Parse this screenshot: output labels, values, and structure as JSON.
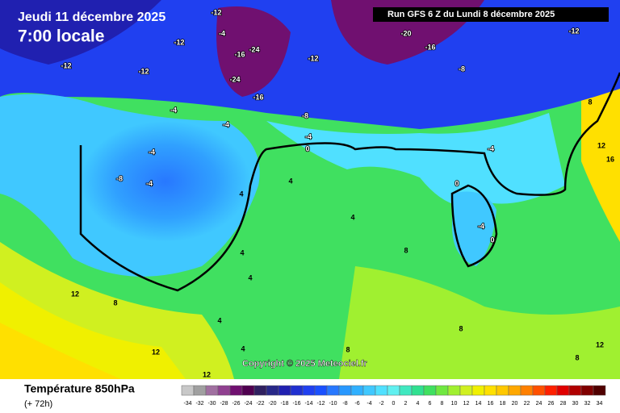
{
  "header": {
    "date": "Jeudi 11 décembre 2025",
    "time": "7:00 locale",
    "run": "Run GFS 6 Z du Lundi 8 décembre 2025"
  },
  "copyright": "Copyright © 2025 Meteociel.fr",
  "contour_labels": [
    -12,
    -4,
    -12,
    -16,
    -24,
    -24,
    -16,
    -12,
    -20,
    -16,
    -8,
    -12,
    -12,
    -12,
    -4,
    -4,
    -8,
    -4,
    0,
    -4,
    -8,
    -4,
    4,
    4,
    4,
    0,
    -4,
    -4,
    0,
    4,
    4,
    12,
    8,
    12,
    8,
    8,
    12,
    12,
    8,
    16,
    4,
    4,
    12,
    8,
    8
  ],
  "legend": {
    "title": "Température 850hPa",
    "subtitle": "(+ 72h)",
    "scale": [
      -34,
      -32,
      -30,
      -28,
      -26,
      -24,
      -22,
      -20,
      -18,
      -16,
      -14,
      -12,
      -10,
      -8,
      -6,
      -4,
      -2,
      0,
      2,
      4,
      6,
      8,
      10,
      12,
      14,
      16,
      18,
      20,
      22,
      24,
      26,
      28,
      30,
      32,
      34
    ],
    "colors": [
      "#c8c8c8",
      "#a0a0a0",
      "#a070a0",
      "#904090",
      "#701070",
      "#500050",
      "#302060",
      "#282888",
      "#2020b0",
      "#2030d0",
      "#2040f0",
      "#1a50ff",
      "#2878ff",
      "#2898ff",
      "#30b0ff",
      "#40c8ff",
      "#50e0ff",
      "#60f0f0",
      "#40e8c0",
      "#30e090",
      "#40e060",
      "#70e840",
      "#a0f030",
      "#d0f020",
      "#f0f000",
      "#ffe000",
      "#ffc800",
      "#ffa800",
      "#ff8000",
      "#ff5000",
      "#ff2000",
      "#e00000",
      "#b00000",
      "#800000",
      "#500000"
    ]
  }
}
